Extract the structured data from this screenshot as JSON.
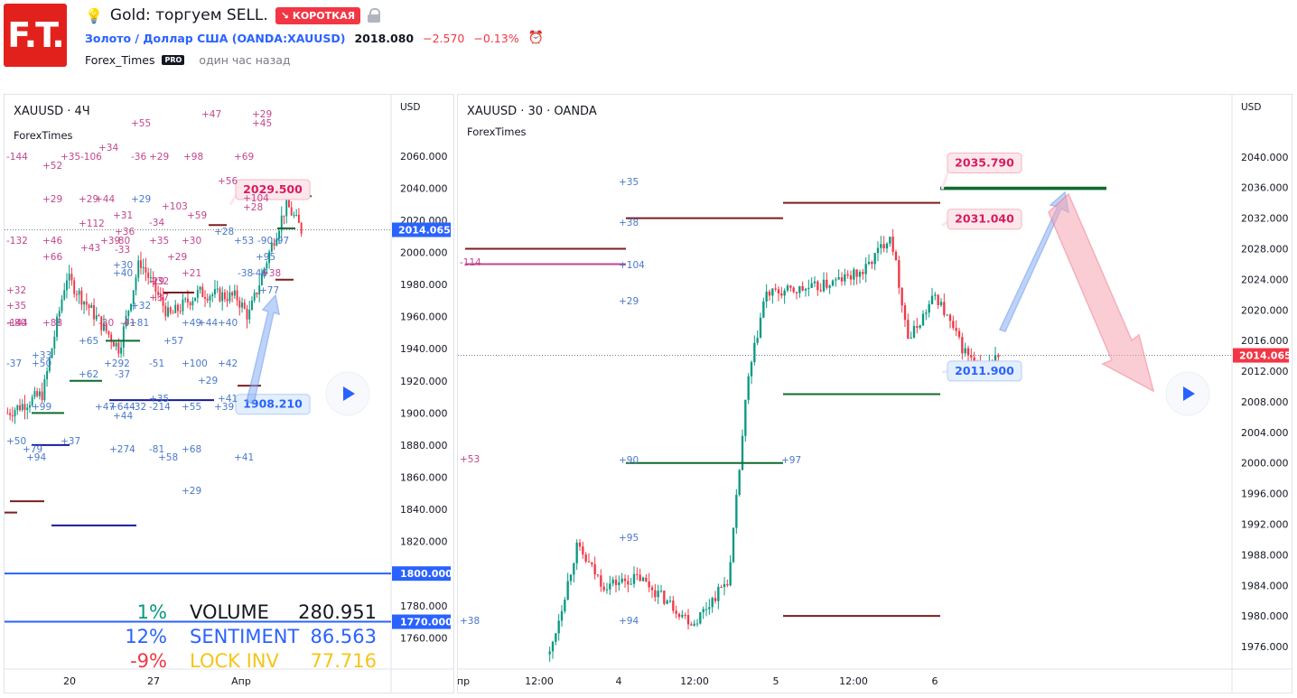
{
  "logo": {
    "text": "F.T."
  },
  "header": {
    "title": "Gold: торгуем SELL.",
    "badge": "↘ КОРОТКАЯ",
    "symbol_name": "Золото / Доллар США",
    "symbol_code": "(OANDA:XAUUSD)",
    "price": "2018.080",
    "change": "−2.570",
    "change_pct": "−0.13%",
    "author": "Forex_Times",
    "author_badge": "PRO",
    "published": "один час назад"
  },
  "chart_data": [
    {
      "type": "candlestick",
      "title": "XAUUSD · 4Ч",
      "subtitle": "ForexTimes",
      "currency": "USD",
      "ylim": [
        1745,
        2088
      ],
      "y_ticks": [
        "2060.000",
        "2040.000",
        "2020.000",
        "2000.000",
        "1980.000",
        "1960.000",
        "1940.000",
        "1920.000",
        "1900.000",
        "1880.000",
        "1860.000",
        "1840.000",
        "1820.000",
        "1800.000",
        "1780.000",
        "1760.000"
      ],
      "x_ticks": [
        "20",
        "27",
        "Апр"
      ],
      "last_price": "2014.065",
      "levels": [
        {
          "label": "1800.000",
          "value": 1800,
          "color": "#2962ff"
        },
        {
          "label": "1770.000",
          "value": 1770,
          "color": "#2962ff"
        }
      ],
      "callouts": [
        {
          "label": "2029.500",
          "value": 2029.5,
          "color": "#d81b60"
        },
        {
          "label": "1908.210",
          "value": 1908.21,
          "color": "#2962ff"
        }
      ],
      "stats": [
        {
          "pct": "1%",
          "name": "VOLUME",
          "value": "280.951",
          "pct_color": "#089981",
          "name_color": "#131722"
        },
        {
          "pct": "12%",
          "name": "SENTIMENT",
          "value": "86.563",
          "pct_color": "#2962ff",
          "name_color": "#2962ff"
        },
        {
          "pct": "-9%",
          "name": "LOCK INV",
          "value": "77.716",
          "pct_color": "#f23645",
          "name_color": "#f5c518"
        }
      ],
      "annotations": {
        "pink": [
          "-144",
          "+52",
          "+35",
          "-106",
          "+34",
          "-36",
          "+29",
          "+98",
          "+69",
          "+55",
          "+47",
          "+29",
          "+45",
          "+56",
          "+29",
          "+29",
          "+44",
          "+103",
          "+31",
          "+59",
          "-34",
          "+112",
          "+36",
          "-132",
          "+46",
          "+43",
          "+39",
          "-80",
          "-33",
          "+35",
          "+30",
          "+66",
          "+29",
          "+32",
          "+35",
          "+32",
          "+80",
          "+88",
          "-30",
          "-41",
          "+37",
          "-144",
          "-29",
          "+21",
          "+38",
          "+104",
          "+28"
        ],
        "blue": [
          "+29",
          "+53",
          "-90",
          "-97",
          "+95",
          "+77",
          "-38",
          "-46",
          "+28",
          "+30",
          "+40",
          "+32",
          "+81",
          "+49",
          "+44",
          "+40",
          "+65",
          "+57",
          "-37",
          "+50",
          "+33",
          "+62",
          "-37",
          "+292",
          "-51",
          "+100",
          "+42",
          "+29",
          "+41",
          "+47",
          "+644",
          "-32",
          "-214",
          "+55",
          "+39",
          "+44",
          "+99",
          "+50",
          "+79",
          "+94",
          "+37",
          "+274",
          "-81",
          "+58",
          "+68",
          "+41",
          "+29",
          "+35"
        ]
      }
    },
    {
      "type": "candlestick",
      "title": "XAUUSD · 30 · OANDA",
      "subtitle": "ForexTimes",
      "currency": "USD",
      "ylim": [
        1974,
        2046
      ],
      "y_ticks": [
        "2040.000",
        "2036.000",
        "2032.000",
        "2028.000",
        "2024.000",
        "2020.000",
        "2016.000",
        "2012.000",
        "2008.000",
        "2004.000",
        "2000.000",
        "1996.000",
        "1992.000",
        "1988.000",
        "1984.000",
        "1980.000",
        "1976.000"
      ],
      "x_ticks": [
        "пр",
        "12:00",
        "4",
        "12:00",
        "5",
        "12:00",
        "6"
      ],
      "last_price": "2014.065",
      "callouts": [
        {
          "label": "2035.790",
          "value": 2035.79,
          "color": "#d81b60"
        },
        {
          "label": "2031.040",
          "value": 2031.04,
          "color": "#d81b60"
        },
        {
          "label": "2011.900",
          "value": 2011.9,
          "color": "#2962ff"
        }
      ],
      "annotations": {
        "blue": [
          "+35",
          "+38",
          "+104",
          "+29",
          "+90",
          "+97",
          "+95",
          "+94",
          "+38"
        ],
        "pink": [
          "-114",
          "+53"
        ]
      }
    }
  ]
}
